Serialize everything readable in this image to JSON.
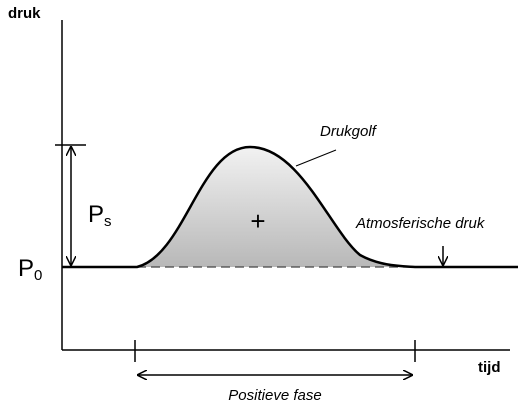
{
  "axes": {
    "y_label": "druk",
    "x_label": "tijd"
  },
  "labels": {
    "p0": {
      "main": "P",
      "sub": "0"
    },
    "ps": {
      "main": "P",
      "sub": "s"
    },
    "wave": "Drukgolf",
    "plus": "+",
    "atmosphere": "Atmosferische druk",
    "phase": "Positieve fase"
  }
}
